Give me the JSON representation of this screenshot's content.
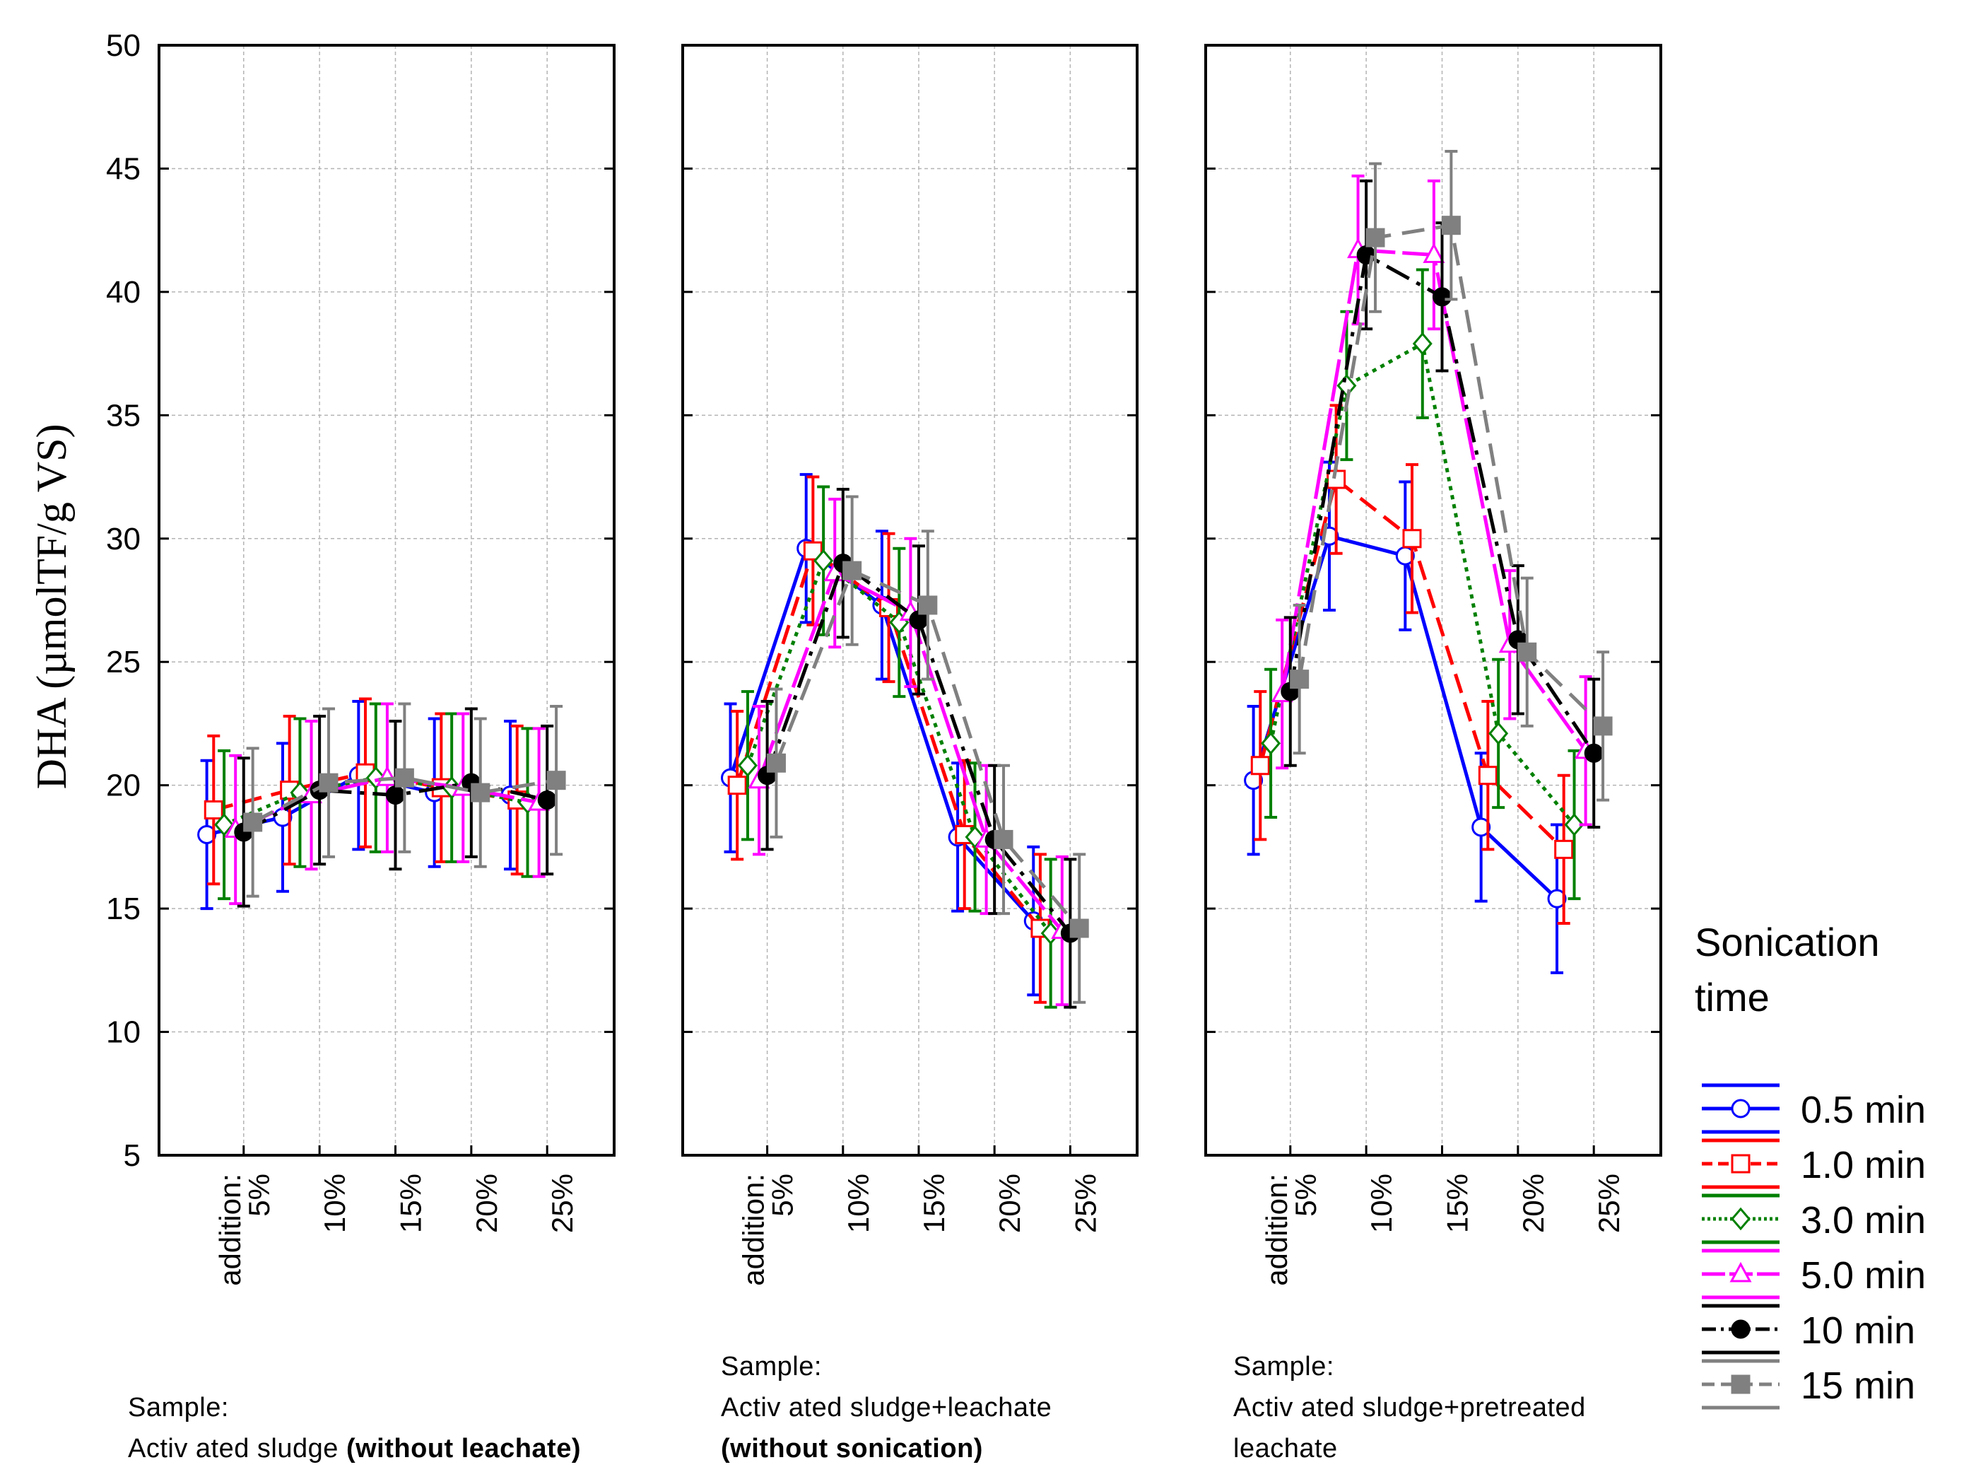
{
  "chart_data": {
    "type": "line",
    "ylabel": "DHA (µmolTF/g VS)",
    "ylim": [
      5,
      50
    ],
    "yticks": [
      5,
      10,
      15,
      20,
      25,
      30,
      35,
      40,
      45,
      50
    ],
    "categories": [
      "addition:\n5%",
      "10%",
      "15%",
      "20%",
      "25%"
    ],
    "category_prefix": "addition:",
    "category_labels": [
      "5%",
      "10%",
      "15%",
      "20%",
      "25%"
    ],
    "grid": true,
    "legend": {
      "title": "Sonication time",
      "title_lines": [
        "Sonication",
        "time"
      ],
      "placement": "right",
      "entries": [
        "0.5 min",
        "1.0 min",
        "3.0 min",
        "5.0 min",
        "10 min",
        "15 min"
      ]
    },
    "series_styles": [
      {
        "name": "0.5 min",
        "color": "#0000ff",
        "marker": "circle-open",
        "dash": ""
      },
      {
        "name": "1.0 min",
        "color": "#ff0000",
        "marker": "square-open",
        "dash": "28,14"
      },
      {
        "name": "3.0 min",
        "color": "#008000",
        "marker": "diamond-open",
        "dash": "6,7"
      },
      {
        "name": "5.0 min",
        "color": "#ff00ff",
        "marker": "triangle-open",
        "dash": "60,10"
      },
      {
        "name": "10 min",
        "color": "#000000",
        "marker": "circle-filled",
        "dash": "36,12,6,12"
      },
      {
        "name": "15 min",
        "color": "#808080",
        "marker": "square-filled",
        "dash": "32,16"
      }
    ],
    "panels": [
      {
        "caption": {
          "line1": "Sample:",
          "line2_normal": "Activ ated sludge ",
          "line2_bold": "(without leachate)",
          "line3": ""
        },
        "series": [
          {
            "name": "0.5 min",
            "values": [
              18.0,
              18.7,
              20.4,
              19.7,
              19.6
            ],
            "errors": [
              3.0,
              3.0,
              3.0,
              3.0,
              3.0
            ]
          },
          {
            "name": "1.0 min",
            "values": [
              19.0,
              19.8,
              20.5,
              19.9,
              19.4
            ],
            "errors": [
              3.0,
              3.0,
              3.0,
              3.0,
              3.0
            ]
          },
          {
            "name": "3.0 min",
            "values": [
              18.4,
              19.7,
              20.3,
              19.9,
              19.3
            ],
            "errors": [
              3.0,
              3.0,
              3.0,
              3.0,
              3.0
            ]
          },
          {
            "name": "5.0 min",
            "values": [
              18.2,
              19.6,
              20.3,
              19.9,
              19.3
            ],
            "errors": [
              3.0,
              3.0,
              3.0,
              3.0,
              3.0
            ]
          },
          {
            "name": "10 min",
            "values": [
              18.1,
              19.8,
              19.6,
              20.1,
              19.4
            ],
            "errors": [
              3.0,
              3.0,
              3.0,
              3.0,
              3.0
            ]
          },
          {
            "name": "15 min",
            "values": [
              18.5,
              20.1,
              20.3,
              19.7,
              20.2
            ],
            "errors": [
              3.0,
              3.0,
              3.0,
              3.0,
              3.0
            ]
          }
        ]
      },
      {
        "caption": {
          "line1": "Sample:",
          "line2_normal": "Activ ated sludge+leachate",
          "line2_bold": "",
          "line3": "(without sonication)"
        },
        "series": [
          {
            "name": "0.5 min",
            "values": [
              20.3,
              29.6,
              27.3,
              17.9,
              14.5
            ],
            "errors": [
              3.0,
              3.0,
              3.0,
              3.0,
              3.0
            ]
          },
          {
            "name": "1.0 min",
            "values": [
              20.0,
              29.5,
              27.2,
              18.0,
              14.2
            ],
            "errors": [
              3.0,
              3.0,
              3.0,
              3.0,
              3.0
            ]
          },
          {
            "name": "3.0 min",
            "values": [
              20.8,
              29.1,
              26.6,
              17.9,
              14.0
            ],
            "errors": [
              3.0,
              3.0,
              3.0,
              3.0,
              3.0
            ]
          },
          {
            "name": "5.0 min",
            "values": [
              20.2,
              28.6,
              27.0,
              17.8,
              14.1
            ],
            "errors": [
              3.0,
              3.0,
              3.0,
              3.0,
              3.0
            ]
          },
          {
            "name": "10 min",
            "values": [
              20.4,
              29.0,
              26.7,
              17.8,
              14.0
            ],
            "errors": [
              3.0,
              3.0,
              3.0,
              3.0,
              3.0
            ]
          },
          {
            "name": "15 min",
            "values": [
              20.9,
              28.7,
              27.3,
              17.8,
              14.2
            ],
            "errors": [
              3.0,
              3.0,
              3.0,
              3.0,
              3.0
            ]
          }
        ]
      },
      {
        "caption": {
          "line1": "Sample:",
          "line2_normal": "Activ ated sludge+pretreated",
          "line2_bold": "",
          "line3": "leachate"
        },
        "series": [
          {
            "name": "0.5 min",
            "values": [
              20.2,
              30.1,
              29.3,
              18.3,
              15.4
            ],
            "errors": [
              3.0,
              3.0,
              3.0,
              3.0,
              3.0
            ]
          },
          {
            "name": "1.0 min",
            "values": [
              20.8,
              32.4,
              30.0,
              20.4,
              17.4
            ],
            "errors": [
              3.0,
              3.0,
              3.0,
              3.0,
              3.0
            ]
          },
          {
            "name": "3.0 min",
            "values": [
              21.7,
              36.2,
              37.9,
              22.1,
              18.4
            ],
            "errors": [
              3.0,
              3.0,
              3.0,
              3.0,
              3.0
            ]
          },
          {
            "name": "5.0 min",
            "values": [
              23.7,
              41.7,
              41.5,
              25.7,
              21.4
            ],
            "errors": [
              3.0,
              3.0,
              3.0,
              3.0,
              3.0
            ]
          },
          {
            "name": "10 min",
            "values": [
              23.8,
              41.5,
              39.8,
              25.9,
              21.3
            ],
            "errors": [
              3.0,
              3.0,
              3.0,
              3.0,
              3.0
            ]
          },
          {
            "name": "15 min",
            "values": [
              24.3,
              42.2,
              42.7,
              25.4,
              22.4
            ],
            "errors": [
              3.0,
              3.0,
              3.0,
              3.0,
              3.0
            ]
          }
        ]
      }
    ]
  }
}
